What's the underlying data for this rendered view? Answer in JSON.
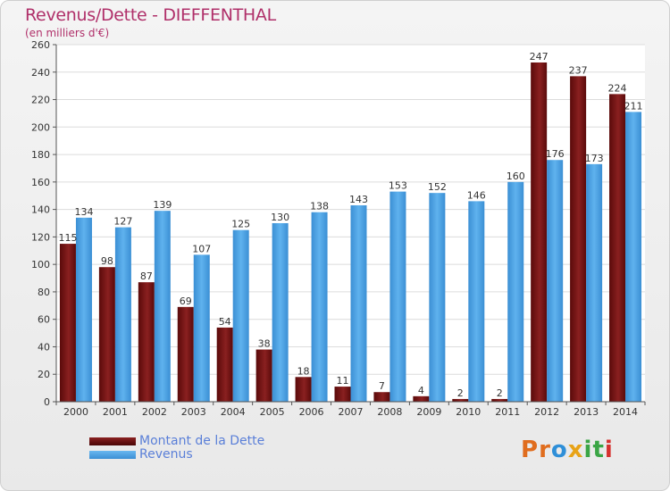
{
  "header": {
    "title": "Revenus/Dette - DIEFFENTHAL",
    "subtitle": "(en milliers d'€)"
  },
  "legend": [
    {
      "label": "Montant de la Dette",
      "color": "#6b0d0d"
    },
    {
      "label": "Revenus",
      "color": "#4ea0e0"
    }
  ],
  "logo": {
    "letters": [
      "P",
      "r",
      "o",
      "x",
      "i",
      "t",
      "i"
    ],
    "colors": [
      "#e06d1e",
      "#e06d1e",
      "#2f8fd8",
      "#e8a317",
      "#3aa545",
      "#3aa545",
      "#d6312f"
    ]
  },
  "chart_data": {
    "type": "bar",
    "categories": [
      "2000",
      "2001",
      "2002",
      "2003",
      "2004",
      "2005",
      "2006",
      "2007",
      "2008",
      "2009",
      "2010",
      "2011",
      "2012",
      "2013",
      "2014"
    ],
    "series": [
      {
        "name": "Montant de la Dette",
        "color": "#6b0d0d",
        "values": [
          115,
          98,
          87,
          69,
          54,
          38,
          18,
          11,
          7,
          4,
          2,
          2,
          247,
          237,
          224
        ]
      },
      {
        "name": "Revenus",
        "color": "#4ea0e0",
        "values": [
          134,
          127,
          139,
          107,
          125,
          130,
          138,
          143,
          153,
          152,
          146,
          160,
          176,
          173,
          211
        ]
      }
    ],
    "ylim": [
      0,
      260
    ],
    "yticks": [
      0,
      20,
      40,
      60,
      80,
      100,
      120,
      140,
      160,
      180,
      200,
      220,
      240,
      260
    ],
    "grid": true
  }
}
